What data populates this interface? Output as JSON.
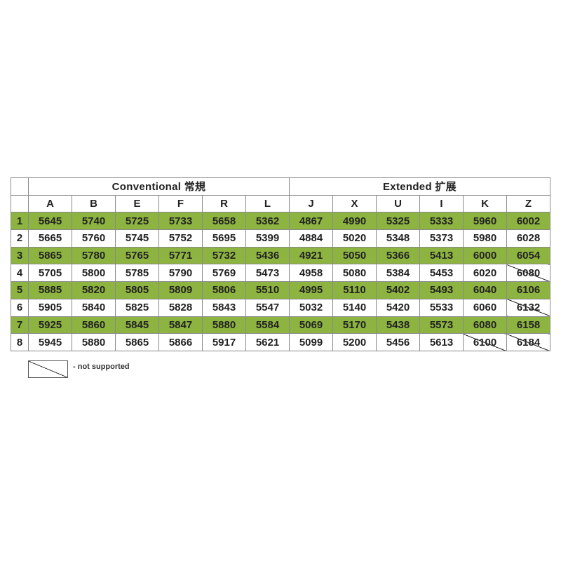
{
  "colors": {
    "highlight_row": "#8db340",
    "border": "#8a8a8a"
  },
  "groups": [
    {
      "label": "Conventional  常規",
      "columns": [
        "A",
        "B",
        "E",
        "F",
        "R",
        "L"
      ]
    },
    {
      "label": "Extended  扩展",
      "columns": [
        "J",
        "X",
        "U",
        "I",
        "K",
        "Z"
      ]
    }
  ],
  "rows": [
    {
      "n": "1",
      "green": true,
      "values": [
        "5645",
        "5740",
        "5725",
        "5733",
        "5658",
        "5362",
        "4867",
        "4990",
        "5325",
        "5333",
        "5960",
        "6002"
      ],
      "not_supported": []
    },
    {
      "n": "2",
      "green": false,
      "values": [
        "5665",
        "5760",
        "5745",
        "5752",
        "5695",
        "5399",
        "4884",
        "5020",
        "5348",
        "5373",
        "5980",
        "6028"
      ],
      "not_supported": []
    },
    {
      "n": "3",
      "green": true,
      "values": [
        "5865",
        "5780",
        "5765",
        "5771",
        "5732",
        "5436",
        "4921",
        "5050",
        "5366",
        "5413",
        "6000",
        "6054"
      ],
      "not_supported": []
    },
    {
      "n": "4",
      "green": false,
      "values": [
        "5705",
        "5800",
        "5785",
        "5790",
        "5769",
        "5473",
        "4958",
        "5080",
        "5384",
        "5453",
        "6020",
        "6080"
      ],
      "not_supported": [
        11
      ]
    },
    {
      "n": "5",
      "green": true,
      "values": [
        "5885",
        "5820",
        "5805",
        "5809",
        "5806",
        "5510",
        "4995",
        "5110",
        "5402",
        "5493",
        "6040",
        "6106"
      ],
      "not_supported": [
        11
      ]
    },
    {
      "n": "6",
      "green": false,
      "values": [
        "5905",
        "5840",
        "5825",
        "5828",
        "5843",
        "5547",
        "5032",
        "5140",
        "5420",
        "5533",
        "6060",
        "6132"
      ],
      "not_supported": [
        11
      ]
    },
    {
      "n": "7",
      "green": true,
      "values": [
        "5925",
        "5860",
        "5845",
        "5847",
        "5880",
        "5584",
        "5069",
        "5170",
        "5438",
        "5573",
        "6080",
        "6158"
      ],
      "not_supported": [
        10,
        11
      ]
    },
    {
      "n": "8",
      "green": false,
      "values": [
        "5945",
        "5880",
        "5865",
        "5866",
        "5917",
        "5621",
        "5099",
        "5200",
        "5456",
        "5613",
        "6100",
        "6184"
      ],
      "not_supported": [
        10,
        11
      ]
    }
  ],
  "legend": {
    "text": "-  not supported"
  }
}
